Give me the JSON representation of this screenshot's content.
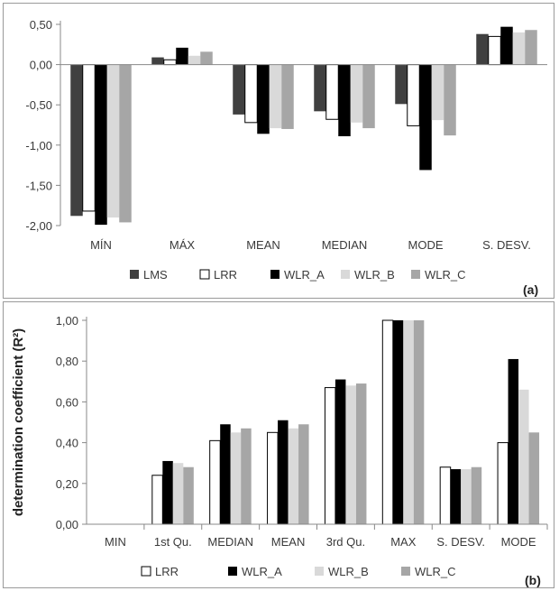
{
  "chart_data": [
    {
      "type": "bar",
      "panel_label": "(a)",
      "title": "",
      "xlabel": "",
      "ylabel": "",
      "categories": [
        "MÍN",
        "MÁX",
        "MEAN",
        "MEDIAN",
        "MODE",
        "S. DESV."
      ],
      "ylim": [
        -2.0,
        0.5
      ],
      "yticks": [
        "0,50",
        "0,00",
        "-0,50",
        "-1,00",
        "-1,50",
        "-2,00"
      ],
      "ytick_values": [
        0.5,
        0.0,
        -0.5,
        -1.0,
        -1.5,
        -2.0
      ],
      "grid": false,
      "legend_position": "bottom",
      "series": [
        {
          "name": "LMS",
          "color": "#404040",
          "values": [
            -1.88,
            0.09,
            -0.62,
            -0.58,
            -0.49,
            0.38
          ]
        },
        {
          "name": "LRR",
          "color": "#ffffff",
          "values": [
            -1.82,
            0.06,
            -0.72,
            -0.68,
            -0.76,
            0.35
          ]
        },
        {
          "name": "WLR_A",
          "color": "#000000",
          "values": [
            -1.99,
            0.21,
            -0.86,
            -0.89,
            -1.31,
            0.47
          ]
        },
        {
          "name": "WLR_B",
          "color": "#d9d9d9",
          "values": [
            -1.9,
            0.11,
            -0.79,
            -0.72,
            -0.69,
            0.4
          ]
        },
        {
          "name": "WLR_C",
          "color": "#a6a6a6",
          "values": [
            -1.96,
            0.16,
            -0.8,
            -0.79,
            -0.88,
            0.43
          ]
        }
      ]
    },
    {
      "type": "bar",
      "panel_label": "(b)",
      "title": "",
      "xlabel": "",
      "ylabel": "determination coefficient (R²)",
      "categories": [
        "MIN",
        "1st Qu.",
        "MEDIAN",
        "MEAN",
        "3rd Qu.",
        "MAX",
        "S. DESV.",
        "MODE"
      ],
      "ylim": [
        0.0,
        1.0
      ],
      "yticks": [
        "1,00",
        "0,80",
        "0,60",
        "0,40",
        "0,20",
        "0,00"
      ],
      "ytick_values": [
        1.0,
        0.8,
        0.6,
        0.4,
        0.2,
        0.0
      ],
      "grid": false,
      "legend_position": "bottom",
      "series": [
        {
          "name": "LRR",
          "color": "#ffffff",
          "values": [
            0.0,
            0.24,
            0.41,
            0.45,
            0.67,
            1.0,
            0.28,
            0.4
          ]
        },
        {
          "name": "WLR_A",
          "color": "#000000",
          "values": [
            0.0,
            0.31,
            0.49,
            0.51,
            0.71,
            1.0,
            0.27,
            0.81
          ]
        },
        {
          "name": "WLR_B",
          "color": "#d9d9d9",
          "values": [
            0.0,
            0.3,
            0.45,
            0.47,
            0.68,
            1.0,
            0.27,
            0.66
          ]
        },
        {
          "name": "WLR_C",
          "color": "#a6a6a6",
          "values": [
            0.0,
            0.28,
            0.47,
            0.49,
            0.69,
            1.0,
            0.28,
            0.45
          ]
        }
      ]
    }
  ]
}
